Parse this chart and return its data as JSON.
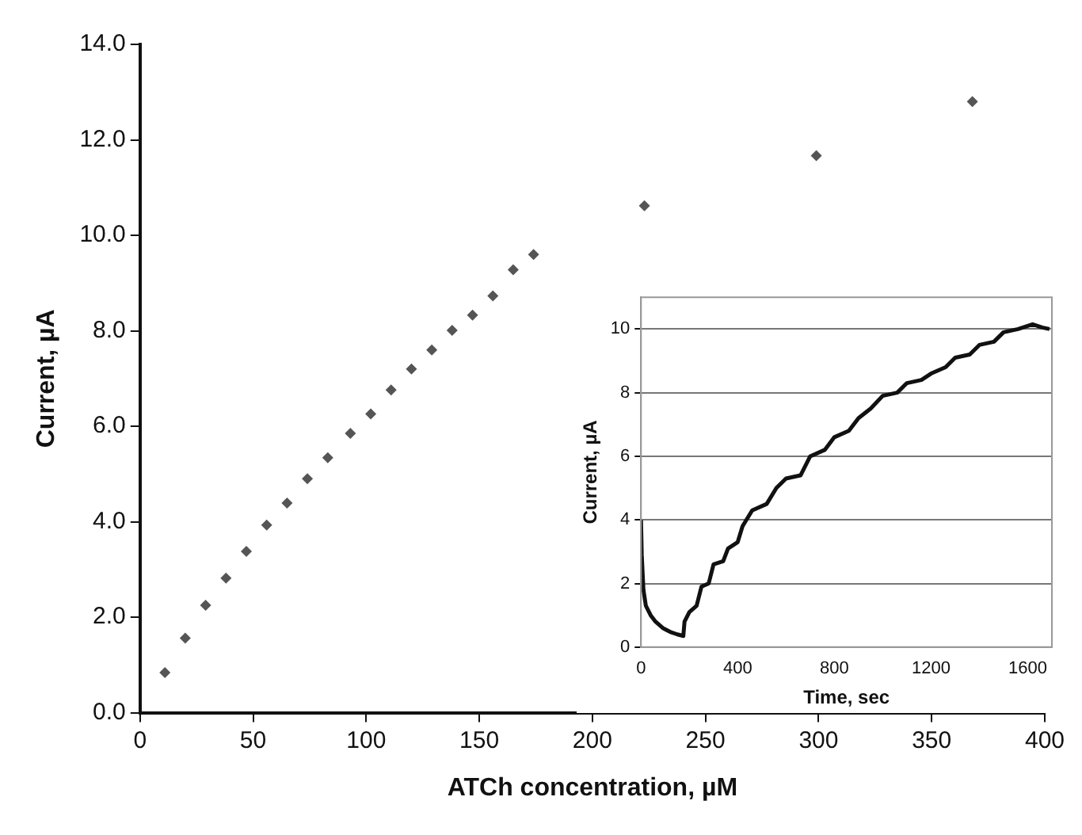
{
  "chart_data": [
    {
      "type": "scatter",
      "xlabel": "ATCh concentration, µM",
      "ylabel": "Current, µA",
      "series": [
        {
          "color": "#555555",
          "x": [
            11,
            20,
            29,
            38,
            47,
            56,
            65,
            74,
            83,
            93,
            102,
            111,
            120,
            129,
            138,
            147,
            156,
            165,
            174,
            223,
            299,
            368
          ],
          "values": [
            0.84,
            1.56,
            2.25,
            2.82,
            3.38,
            3.93,
            4.39,
            4.9,
            5.34,
            5.85,
            6.26,
            6.76,
            7.2,
            7.6,
            8.01,
            8.33,
            8.73,
            9.28,
            9.6,
            10.62,
            11.67,
            12.8
          ]
        }
      ],
      "xlim": [
        0,
        400
      ],
      "xticks": [
        0,
        50,
        100,
        150,
        200,
        250,
        300,
        350,
        400
      ],
      "ylim": [
        0,
        14
      ],
      "yticks": [
        {
          "value": 0,
          "label": "0.0"
        },
        {
          "value": 2,
          "label": "2.0"
        },
        {
          "value": 4,
          "label": "4.0"
        },
        {
          "value": 6,
          "label": "6.0"
        },
        {
          "value": 8,
          "label": "8.0"
        },
        {
          "value": 10,
          "label": "10.0"
        },
        {
          "value": 12,
          "label": "12.0"
        },
        {
          "value": 14,
          "label": "14.0"
        }
      ],
      "grid": false,
      "legend": false,
      "marker": "diamond"
    },
    {
      "type": "line",
      "xlabel": "Time, sec",
      "ylabel": "Current, µA",
      "series": [
        {
          "color": "#111111",
          "x": [
            0,
            3,
            10,
            20,
            40,
            60,
            90,
            120,
            150,
            175,
            180,
            200,
            230,
            250,
            280,
            300,
            340,
            360,
            400,
            420,
            460,
            520,
            560,
            600,
            660,
            700,
            760,
            800,
            860,
            900,
            950,
            1000,
            1060,
            1100,
            1160,
            1200,
            1260,
            1300,
            1360,
            1400,
            1460,
            1500,
            1560,
            1620,
            1660,
            1690
          ],
          "values": [
            4.0,
            2.9,
            1.8,
            1.3,
            1.0,
            0.8,
            0.6,
            0.48,
            0.4,
            0.35,
            0.8,
            1.1,
            1.3,
            1.9,
            2.0,
            2.6,
            2.7,
            3.1,
            3.3,
            3.8,
            4.3,
            4.5,
            5.0,
            5.3,
            5.4,
            6.0,
            6.2,
            6.6,
            6.8,
            7.2,
            7.5,
            7.9,
            8.0,
            8.3,
            8.4,
            8.6,
            8.8,
            9.1,
            9.2,
            9.5,
            9.6,
            9.9,
            10.0,
            10.15,
            10.05,
            10.0
          ]
        }
      ],
      "xlim": [
        0,
        1700
      ],
      "xticks": [
        0,
        400,
        800,
        1200,
        1600
      ],
      "ylim": [
        0,
        11
      ],
      "yticks": [
        0,
        2,
        4,
        6,
        8,
        10
      ],
      "grid": "y",
      "legend": false,
      "marker": "none",
      "line_style": "solid"
    }
  ]
}
